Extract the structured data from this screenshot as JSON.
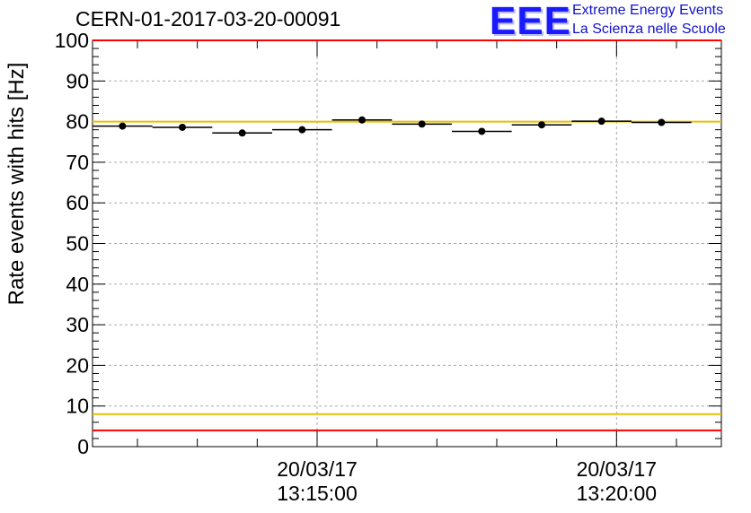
{
  "header": {
    "title": "CERN-01-2017-03-20-00091",
    "logo": {
      "mark": "EEE",
      "line1": "Extreme Energy Events",
      "line2": "La Scienza nelle Scuole"
    }
  },
  "chart_data": {
    "type": "scatter",
    "title": "CERN-01-2017-03-20-00091",
    "xlabel": "",
    "ylabel": "Rate events with hits [Hz]",
    "ylim": [
      0,
      100
    ],
    "yticks": [
      0,
      10,
      20,
      30,
      40,
      50,
      60,
      70,
      80,
      90,
      100
    ],
    "xlim": [
      "20/03/17 13:11:15",
      "20/03/17 13:21:45"
    ],
    "xticks": [
      {
        "value": "20/03/17 13:15:00",
        "label_date": "20/03/17",
        "label_time": "13:15:00"
      },
      {
        "value": "20/03/17 13:20:00",
        "label_date": "20/03/17",
        "label_time": "13:20:00"
      }
    ],
    "grid": true,
    "points": [
      {
        "x": "20/03/17 13:11:45",
        "y": 78.9,
        "y_err": 0.6
      },
      {
        "x": "20/03/17 13:12:45",
        "y": 78.6,
        "y_err": 0.6
      },
      {
        "x": "20/03/17 13:13:45",
        "y": 77.2,
        "y_err": 0.6
      },
      {
        "x": "20/03/17 13:14:45",
        "y": 78.0,
        "y_err": 0.6
      },
      {
        "x": "20/03/17 13:15:45",
        "y": 80.4,
        "y_err": 0.6
      },
      {
        "x": "20/03/17 13:16:45",
        "y": 79.4,
        "y_err": 0.6
      },
      {
        "x": "20/03/17 13:17:45",
        "y": 77.6,
        "y_err": 0.6
      },
      {
        "x": "20/03/17 13:18:45",
        "y": 79.2,
        "y_err": 0.6
      },
      {
        "x": "20/03/17 13:19:45",
        "y": 80.1,
        "y_err": 0.6
      },
      {
        "x": "20/03/17 13:20:45",
        "y": 79.8,
        "y_err": 0.6
      }
    ],
    "reference_lines": [
      {
        "y": 100,
        "color": "#ff0000"
      },
      {
        "y": 80,
        "color": "#e8c000"
      },
      {
        "y": 8,
        "color": "#e8c000"
      },
      {
        "y": 4,
        "color": "#ff0000"
      }
    ],
    "colors": {
      "marker": "#000000",
      "grid": "#aaaaaa",
      "red": "#ff0000",
      "yellow": "#e8c000",
      "logo": "#1a1aff"
    }
  }
}
